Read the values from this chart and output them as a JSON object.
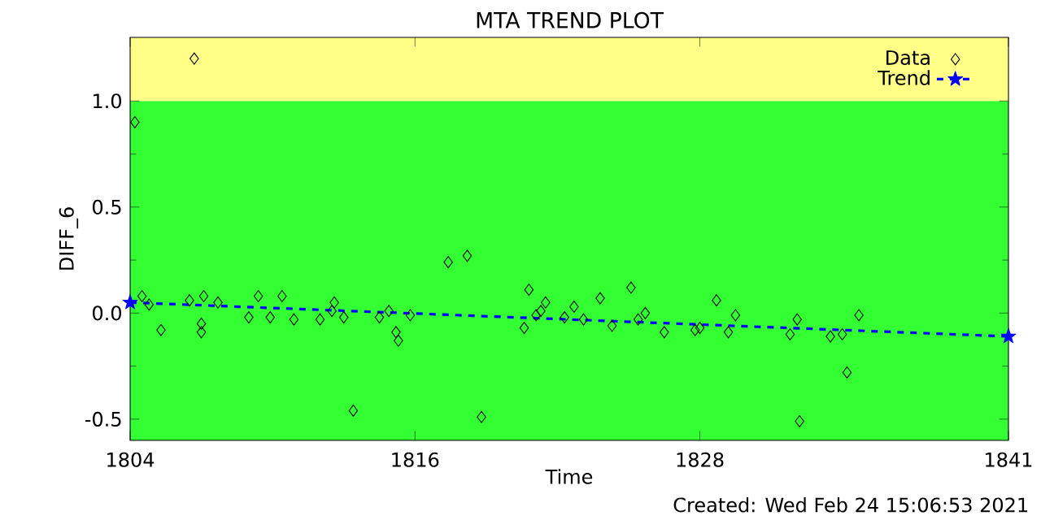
{
  "chart_data": {
    "type": "scatter",
    "title": "MTA TREND PLOT",
    "xlabel": "Time",
    "ylabel": "DIFF_6",
    "xlim": [
      1804,
      1841
    ],
    "xticks": [
      1804,
      1816,
      1828,
      1841
    ],
    "ylim": [
      -0.6,
      1.3
    ],
    "yticks": [
      {
        "value": -0.5,
        "label": "-0.5"
      },
      {
        "value": 0,
        "label": "0.0"
      },
      {
        "value": 0.5,
        "label": "0.5"
      },
      {
        "value": 1.0,
        "label": "1.0"
      }
    ],
    "bands": [
      {
        "axis": "y",
        "from": -0.6,
        "to": 1.0,
        "color": "#33ff33"
      },
      {
        "axis": "y",
        "from": 1.0,
        "to": 1.3,
        "color": "#ffff88"
      }
    ],
    "legend": "top right",
    "grid": false,
    "annotations": [
      "Created: Wed Feb 24 15:06:53 2021"
    ],
    "series": [
      {
        "name": "Data",
        "color": "#000000",
        "marker": "diamond",
        "x": [
          1804.2,
          1806.7,
          1804.5,
          1804.8,
          1805.3,
          1806.5,
          1807.0,
          1807.0,
          1807.1,
          1807.7,
          1809.0,
          1809.4,
          1809.9,
          1810.4,
          1810.9,
          1812.0,
          1812.5,
          1812.6,
          1813.0,
          1813.4,
          1814.5,
          1814.9,
          1815.2,
          1815.3,
          1815.8,
          1817.4,
          1818.2,
          1818.8,
          1820.6,
          1820.8,
          1821.1,
          1821.3,
          1821.5,
          1822.3,
          1822.7,
          1823.1,
          1823.8,
          1824.3,
          1825.1,
          1825.4,
          1825.7,
          1826.5,
          1827.8,
          1828.0,
          1828.7,
          1829.2,
          1829.5,
          1831.8,
          1832.1,
          1832.2,
          1833.5,
          1834.0,
          1834.2,
          1834.7
        ],
        "values": [
          0.9,
          1.2,
          0.08,
          0.04,
          -0.08,
          0.06,
          -0.05,
          -0.09,
          0.08,
          0.05,
          -0.02,
          0.08,
          -0.02,
          0.08,
          -0.03,
          -0.03,
          0.01,
          0.05,
          -0.02,
          -0.46,
          -0.02,
          0.01,
          -0.09,
          -0.13,
          -0.01,
          0.24,
          0.27,
          -0.49,
          -0.07,
          0.11,
          -0.01,
          0.01,
          0.05,
          -0.02,
          0.03,
          -0.03,
          0.07,
          -0.06,
          0.12,
          -0.03,
          0.0,
          -0.09,
          -0.08,
          -0.07,
          0.06,
          -0.09,
          -0.01,
          -0.1,
          -0.03,
          -0.51,
          -0.11,
          -0.1,
          -0.28,
          -0.01
        ]
      },
      {
        "name": "Trend",
        "type": "line",
        "color": "#0000ff",
        "marker": "star",
        "line_style": "dashed",
        "x": [
          1804,
          1841
        ],
        "values": [
          0.05,
          -0.11
        ]
      }
    ]
  }
}
